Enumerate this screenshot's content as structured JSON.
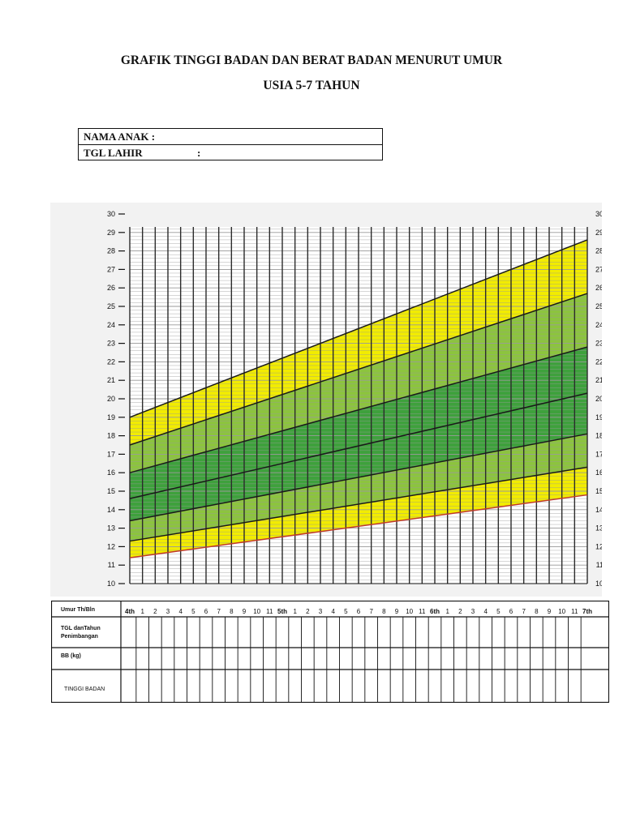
{
  "header": {
    "title": "GRAFIK TINGGI BADAN DAN BERAT BADAN MENURUT UMUR",
    "subtitle": "USIA 5-7 TAHUN"
  },
  "identity": {
    "name_label": "NAMA ANAK :",
    "dob_label": "TGL LAHIR",
    "dob_colon": ":"
  },
  "table": {
    "row_labels": [
      "Umur Th/Bln",
      "TGL danTahun Penimbangan",
      "BB (kg)",
      "TINGGI BADAN"
    ],
    "age_labels": [
      "4th",
      "1",
      "2",
      "3",
      "4",
      "5",
      "6",
      "7",
      "8",
      "9",
      "10",
      "11",
      "5th",
      "1",
      "2",
      "3",
      "4",
      "5",
      "6",
      "7",
      "8",
      "9",
      "10",
      "11",
      "6th",
      "1",
      "2",
      "3",
      "4",
      "5",
      "6",
      "7",
      "8",
      "9",
      "10",
      "11",
      "7th"
    ]
  },
  "colors": {
    "yellow": "#f2ec00",
    "light_green": "#8cc43e",
    "dark_green": "#3ea13c",
    "lowest_line": "#c0392b",
    "grid_major": "#2b2b2b",
    "grid_minor": "#9a9a9a"
  },
  "chart_data": {
    "type": "line",
    "title": "",
    "xlabel": "Umur Th/Bln",
    "ylabel": "",
    "x_unit": "months",
    "xlim": [
      0,
      36
    ],
    "ylim": [
      10,
      30
    ],
    "y_ticks": [
      10,
      11,
      12,
      13,
      14,
      15,
      16,
      17,
      18,
      19,
      20,
      21,
      22,
      23,
      24,
      25,
      26,
      27,
      28,
      29,
      30
    ],
    "x_tick_labels": [
      "4th",
      "1",
      "2",
      "3",
      "4",
      "5",
      "6",
      "7",
      "8",
      "9",
      "10",
      "11",
      "5th",
      "1",
      "2",
      "3",
      "4",
      "5",
      "6",
      "7",
      "8",
      "9",
      "10",
      "11",
      "6th",
      "1",
      "2",
      "3",
      "4",
      "5",
      "6",
      "7",
      "8",
      "9",
      "10",
      "11",
      "7th"
    ],
    "grid": true,
    "series": [
      {
        "start": 11.4,
        "end": 14.8
      },
      {
        "start": 12.3,
        "end": 16.3
      },
      {
        "start": 13.4,
        "end": 18.1
      },
      {
        "start": 14.6,
        "end": 20.3
      },
      {
        "start": 16.0,
        "end": 22.8
      },
      {
        "start": 17.5,
        "end": 25.7
      },
      {
        "start": 19.0,
        "end": 28.6
      }
    ],
    "bands": [
      "yellow",
      "light_green",
      "dark_green",
      "dark_green",
      "light_green",
      "yellow"
    ]
  }
}
